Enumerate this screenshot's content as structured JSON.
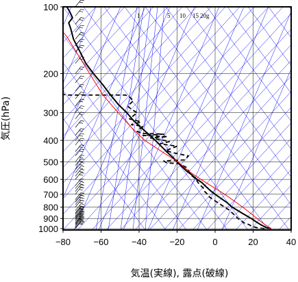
{
  "chart_data": {
    "type": "line",
    "title": "",
    "xlabel": "気温(実線), 露点(破線)",
    "ylabel": "気圧(hPa)",
    "xlim": [
      -80,
      40
    ],
    "ylim": [
      1050,
      100
    ],
    "y_scale": "log",
    "x_ticks": [
      "−80",
      "−60",
      "−40",
      "−20",
      "0",
      "20",
      "40"
    ],
    "x_tick_values": [
      -80,
      -60,
      -40,
      -20,
      0,
      20,
      40
    ],
    "y_ticks": [
      "100",
      "200",
      "300",
      "400",
      "500",
      "600",
      "700",
      "800",
      "900",
      "1000"
    ],
    "y_tick_values": [
      100,
      200,
      300,
      400,
      500,
      600,
      700,
      800,
      900,
      1000
    ],
    "mixing_ratio_labels": [
      "1",
      "5",
      "10",
      "15",
      "20g"
    ],
    "mixing_ratio_values": [
      1,
      5,
      10,
      15,
      20
    ],
    "grid": true,
    "colors": {
      "temperature": "#000000",
      "dewpoint": "#000000",
      "parcel": "#ff0000",
      "background_lines": "#0000ff"
    },
    "series": [
      {
        "name": "気温",
        "style": "solid",
        "points": [
          [
            29.5,
            1000
          ],
          [
            27,
            990
          ],
          [
            24,
            960
          ],
          [
            21,
            925
          ],
          [
            19,
            900
          ],
          [
            17,
            880
          ],
          [
            14,
            850
          ],
          [
            11.5,
            825
          ],
          [
            9,
            800
          ],
          [
            6,
            760
          ],
          [
            3,
            730
          ],
          [
            0,
            700
          ],
          [
            -2,
            680
          ],
          [
            -4.5,
            650
          ],
          [
            -7,
            620
          ],
          [
            -9.5,
            600
          ],
          [
            -12.5,
            570
          ],
          [
            -15,
            550
          ],
          [
            -18,
            520
          ],
          [
            -20,
            500
          ],
          [
            -22,
            480
          ],
          [
            -25.5,
            450
          ],
          [
            -29,
            420
          ],
          [
            -31.5,
            400
          ],
          [
            -35,
            375
          ],
          [
            -39,
            350
          ],
          [
            -43,
            325
          ],
          [
            -46.5,
            300
          ],
          [
            -51,
            275
          ],
          [
            -55,
            250
          ],
          [
            -59,
            225
          ],
          [
            -64,
            200
          ],
          [
            -68,
            180
          ],
          [
            -71,
            160
          ],
          [
            -74.5,
            140
          ],
          [
            -76,
            125
          ],
          [
            -77,
            118
          ],
          [
            -75,
            112
          ],
          [
            -76.5,
            105
          ],
          [
            -78,
            100
          ]
        ]
      },
      {
        "name": "露点",
        "style": "dashed",
        "points": [
          [
            26,
            1000
          ],
          [
            22,
            990
          ],
          [
            19,
            975
          ],
          [
            18,
            960
          ],
          [
            15,
            940
          ],
          [
            14,
            925
          ],
          [
            12,
            900
          ],
          [
            11,
            880
          ],
          [
            9,
            850
          ],
          [
            7,
            820
          ],
          [
            5,
            800
          ],
          [
            3,
            780
          ],
          [
            1,
            760
          ],
          [
            -1,
            740
          ],
          [
            -3,
            720
          ],
          [
            -4,
            700
          ],
          [
            -5.5,
            680
          ],
          [
            -6,
            660
          ],
          [
            -7.5,
            640
          ],
          [
            -9,
            620
          ],
          [
            -10,
            600
          ],
          [
            -12.5,
            575
          ],
          [
            -13.5,
            555
          ],
          [
            -15,
            530
          ],
          [
            -17,
            520
          ],
          [
            -19,
            510
          ],
          [
            -25.5,
            505
          ],
          [
            -27,
            495
          ],
          [
            -16,
            490
          ],
          [
            -14,
            470
          ],
          [
            -22,
            455
          ],
          [
            -26,
            445
          ],
          [
            -20,
            425
          ],
          [
            -29,
            415
          ],
          [
            -24,
            405
          ],
          [
            -28,
            398
          ],
          [
            -34,
            390
          ],
          [
            -25,
            385
          ],
          [
            -38,
            380
          ],
          [
            -27,
            375
          ],
          [
            -38,
            372
          ],
          [
            -41,
            365
          ],
          [
            -38,
            345
          ],
          [
            -44,
            340
          ],
          [
            -39,
            330
          ],
          [
            -45,
            320
          ],
          [
            -41,
            300
          ],
          [
            -44,
            290
          ],
          [
            -46,
            280
          ],
          [
            -44,
            270
          ],
          [
            -43,
            265
          ],
          [
            -45,
            255
          ],
          [
            -47,
            250
          ],
          [
            -78,
            250
          ],
          [
            -80,
            248
          ]
        ]
      },
      {
        "name": "",
        "style": "solid",
        "color": "#ff0000",
        "points": [
          [
            29.5,
            1000
          ],
          [
            25.5,
            950
          ],
          [
            22,
            900
          ],
          [
            18.5,
            850
          ],
          [
            14.5,
            800
          ],
          [
            10,
            750
          ],
          [
            5,
            700
          ],
          [
            -1,
            650
          ],
          [
            -7.5,
            600
          ],
          [
            -14,
            550
          ],
          [
            -19.5,
            500
          ],
          [
            -28,
            450
          ],
          [
            -37,
            400
          ],
          [
            -44,
            350
          ],
          [
            -51,
            300
          ],
          [
            -59,
            250
          ],
          [
            -66,
            200
          ],
          [
            -73,
            160
          ],
          [
            -78,
            136
          ],
          [
            -80,
            130
          ]
        ]
      }
    ],
    "wind_barbs_levels": [
      1000,
      990,
      975,
      960,
      950,
      940,
      925,
      910,
      900,
      890,
      875,
      860,
      850,
      830,
      800,
      780,
      760,
      740,
      700,
      680,
      660,
      640,
      600,
      580,
      560,
      540,
      520,
      500,
      470,
      450,
      420,
      400,
      380,
      350,
      320,
      300,
      280,
      260,
      240,
      220,
      200,
      180,
      160,
      150,
      140,
      130,
      120,
      110,
      100
    ]
  }
}
